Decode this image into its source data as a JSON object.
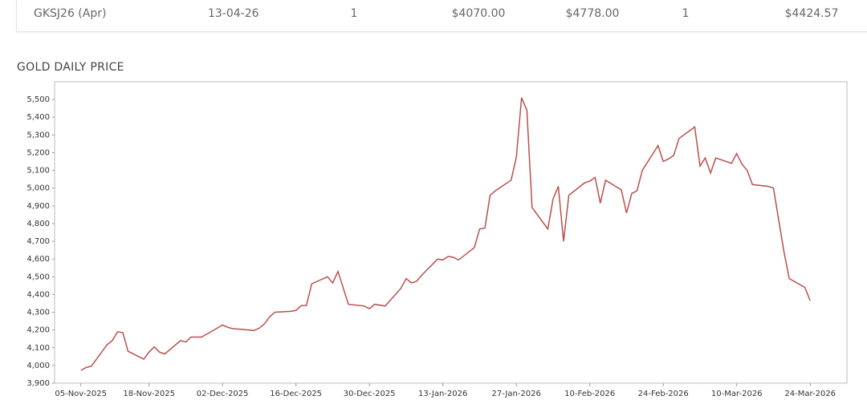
{
  "table": {
    "rows": [
      [
        "GKSJ26 (Apr)",
        "13-04-26",
        "1",
        "$4070.00",
        "$4778.00",
        "1",
        "$4424.57"
      ]
    ]
  },
  "chart_data": {
    "type": "line",
    "title": "GOLD DAILY PRICE",
    "x": [
      "05-Nov-2025",
      "06-Nov-2025",
      "07-Nov-2025",
      "10-Nov-2025",
      "11-Nov-2025",
      "12-Nov-2025",
      "13-Nov-2025",
      "14-Nov-2025",
      "17-Nov-2025",
      "18-Nov-2025",
      "19-Nov-2025",
      "20-Nov-2025",
      "21-Nov-2025",
      "24-Nov-2025",
      "25-Nov-2025",
      "26-Nov-2025",
      "28-Nov-2025",
      "01-Dec-2025",
      "02-Dec-2025",
      "03-Dec-2025",
      "04-Dec-2025",
      "05-Dec-2025",
      "08-Dec-2025",
      "09-Dec-2025",
      "10-Dec-2025",
      "11-Dec-2025",
      "12-Dec-2025",
      "15-Dec-2025",
      "16-Dec-2025",
      "17-Dec-2025",
      "18-Dec-2025",
      "19-Dec-2025",
      "22-Dec-2025",
      "23-Dec-2025",
      "24-Dec-2025",
      "26-Dec-2025",
      "29-Dec-2025",
      "30-Dec-2025",
      "31-Dec-2025",
      "02-Jan-2026",
      "05-Jan-2026",
      "06-Jan-2026",
      "07-Jan-2026",
      "08-Jan-2026",
      "09-Jan-2026",
      "12-Jan-2026",
      "13-Jan-2026",
      "14-Jan-2026",
      "15-Jan-2026",
      "16-Jan-2026",
      "19-Jan-2026",
      "20-Jan-2026",
      "21-Jan-2026",
      "22-Jan-2026",
      "23-Jan-2026",
      "26-Jan-2026",
      "27-Jan-2026",
      "28-Jan-2026",
      "29-Jan-2026",
      "30-Jan-2026",
      "02-Feb-2026",
      "03-Feb-2026",
      "04-Feb-2026",
      "05-Feb-2026",
      "06-Feb-2026",
      "09-Feb-2026",
      "10-Feb-2026",
      "11-Feb-2026",
      "12-Feb-2026",
      "13-Feb-2026",
      "16-Feb-2026",
      "17-Feb-2026",
      "18-Feb-2026",
      "19-Feb-2026",
      "20-Feb-2026",
      "23-Feb-2026",
      "24-Feb-2026",
      "25-Feb-2026",
      "26-Feb-2026",
      "27-Feb-2026",
      "02-Mar-2026",
      "03-Mar-2026",
      "04-Mar-2026",
      "05-Mar-2026",
      "06-Mar-2026",
      "09-Mar-2026",
      "10-Mar-2026",
      "11-Mar-2026",
      "12-Mar-2026",
      "13-Mar-2026",
      "16-Mar-2026",
      "17-Mar-2026",
      "18-Mar-2026",
      "19-Mar-2026",
      "20-Mar-2026",
      "23-Mar-2026",
      "24-Mar-2026"
    ],
    "series": [
      {
        "name": "Gold",
        "color": "#b8504d",
        "values": [
          3972,
          3988,
          3996,
          4117,
          4140,
          4190,
          4185,
          4080,
          4035,
          4075,
          4105,
          4075,
          4065,
          4140,
          4132,
          4160,
          4160,
          4210,
          4228,
          4215,
          4207,
          4205,
          4197,
          4210,
          4235,
          4275,
          4300,
          4305,
          4310,
          4337,
          4338,
          4460,
          4500,
          4465,
          4530,
          4345,
          4335,
          4320,
          4345,
          4335,
          4435,
          4490,
          4465,
          4475,
          4510,
          4600,
          4595,
          4615,
          4610,
          4595,
          4665,
          4770,
          4775,
          4960,
          4985,
          5045,
          5175,
          5510,
          5440,
          4890,
          4770,
          4940,
          5010,
          4700,
          4960,
          5030,
          5040,
          5060,
          4915,
          5045,
          4990,
          4860,
          4970,
          4985,
          5100,
          5240,
          5150,
          5165,
          5185,
          5280,
          5345,
          5125,
          5170,
          5085,
          5170,
          5140,
          5195,
          5135,
          5100,
          5020,
          5010,
          5000,
          4820,
          4640,
          4490,
          4440,
          4365
        ]
      }
    ],
    "xlim": [
      "31-Oct-2025",
      "31-Mar-2026"
    ],
    "xticks": [
      "05-Nov-2025",
      "18-Nov-2025",
      "02-Dec-2025",
      "16-Dec-2025",
      "30-Dec-2025",
      "13-Jan-2026",
      "27-Jan-2026",
      "10-Feb-2026",
      "24-Feb-2026",
      "10-Mar-2026",
      "24-Mar-2026"
    ],
    "ylim": [
      3900,
      5600
    ],
    "yticks": [
      {
        "value": 3900,
        "label": "3,900"
      },
      {
        "value": 4000,
        "label": "4,000"
      },
      {
        "value": 4100,
        "label": "4,100"
      },
      {
        "value": 4200,
        "label": "4,200"
      },
      {
        "value": 4300,
        "label": "4,300"
      },
      {
        "value": 4400,
        "label": "4,400"
      },
      {
        "value": 4500,
        "label": "4,500"
      },
      {
        "value": 4600,
        "label": "4,600"
      },
      {
        "value": 4700,
        "label": "4,700"
      },
      {
        "value": 4800,
        "label": "4,800"
      },
      {
        "value": 4900,
        "label": "4,900"
      },
      {
        "value": 5000,
        "label": "5,000"
      },
      {
        "value": 5100,
        "label": "5,100"
      },
      {
        "value": 5200,
        "label": "5,200"
      },
      {
        "value": 5300,
        "label": "5,300"
      },
      {
        "value": 5400,
        "label": "5,400"
      },
      {
        "value": 5500,
        "label": "5,500"
      }
    ]
  }
}
